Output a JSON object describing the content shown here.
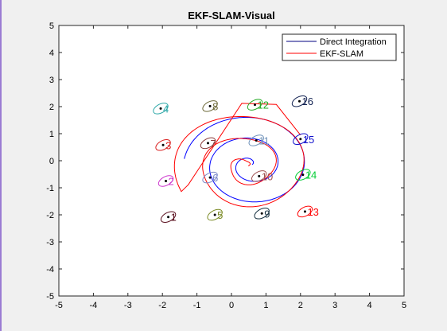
{
  "chart_data": {
    "type": "scatter",
    "title": "EKF-SLAM-Visual",
    "xlabel": "",
    "ylabel": "",
    "xlim": [
      -5,
      5
    ],
    "ylim": [
      -5,
      5
    ],
    "xticks": [
      -5,
      -4,
      -3,
      -2,
      -1,
      0,
      1,
      2,
      3,
      4,
      5
    ],
    "yticks": [
      -5,
      -4,
      -3,
      -2,
      -1,
      0,
      1,
      2,
      3,
      4,
      5
    ],
    "grid": false,
    "legend_position": "top-right",
    "series": [
      {
        "name": "Direct Integration",
        "type": "line",
        "color": "#0000ff",
        "legend_color": "#000080"
      },
      {
        "name": "EKF-SLAM",
        "type": "line",
        "color": "#ff0000",
        "legend_color": "#ff0000"
      }
    ],
    "landmarks": [
      {
        "id": "1",
        "x": -1.83,
        "y": -2.08,
        "color": "#5a0f1e"
      },
      {
        "id": "2",
        "x": -1.9,
        "y": -0.75,
        "color": "#cc33cc"
      },
      {
        "id": "3",
        "x": -1.98,
        "y": 0.58,
        "color": "#d92020"
      },
      {
        "id": "4",
        "x": -2.05,
        "y": 1.93,
        "color": "#2aa7a7"
      },
      {
        "id": "5",
        "x": -0.48,
        "y": -2.0,
        "color": "#7a8a24"
      },
      {
        "id": "6",
        "x": -0.62,
        "y": -0.62,
        "color": "#7b89c9"
      },
      {
        "id": "7",
        "x": -0.68,
        "y": 0.65,
        "color": "#8a3a3a"
      },
      {
        "id": "8",
        "x": -0.62,
        "y": 2.02,
        "color": "#6e6a3a"
      },
      {
        "id": "9",
        "x": 0.88,
        "y": -1.95,
        "color": "#153040"
      },
      {
        "id": "10",
        "x": 0.8,
        "y": -0.57,
        "color": "#a05050"
      },
      {
        "id": "11",
        "x": 0.72,
        "y": 0.75,
        "color": "#6d90b8"
      },
      {
        "id": "12",
        "x": 0.68,
        "y": 2.07,
        "color": "#22aa22"
      },
      {
        "id": "13",
        "x": 2.13,
        "y": -1.88,
        "color": "#ff0000"
      },
      {
        "id": "14",
        "x": 2.07,
        "y": -0.52,
        "color": "#00cc33"
      },
      {
        "id": "15",
        "x": 2.0,
        "y": 0.8,
        "color": "#1010cc"
      },
      {
        "id": "16",
        "x": 1.97,
        "y": 2.2,
        "color": "#102050"
      }
    ]
  }
}
